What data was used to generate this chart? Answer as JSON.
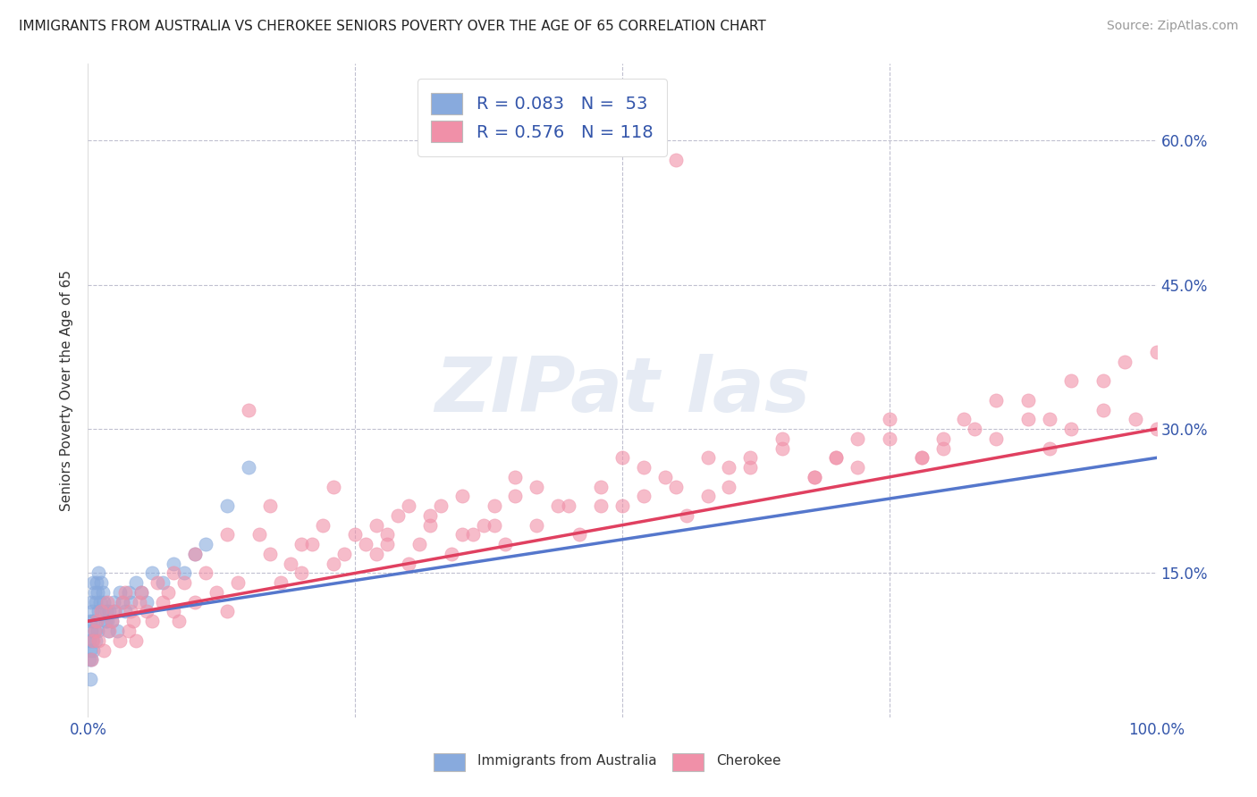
{
  "title": "IMMIGRANTS FROM AUSTRALIA VS CHEROKEE SENIORS POVERTY OVER THE AGE OF 65 CORRELATION CHART",
  "source": "Source: ZipAtlas.com",
  "ylabel": "Seniors Poverty Over the Age of 65",
  "xlim": [
    0.0,
    1.0
  ],
  "ylim": [
    0.0,
    0.68
  ],
  "color_australia": "#88aadd",
  "color_cherokee": "#f090a8",
  "trendline_australia": "#5577cc",
  "trendline_cherokee": "#e04060",
  "background_color": "#ffffff",
  "grid_color": "#c0c0d0",
  "label_australia": "Immigrants from Australia",
  "label_cherokee": "Cherokee",
  "legend_color": "#3355aa",
  "australia_x": [
    0.001,
    0.001,
    0.002,
    0.002,
    0.002,
    0.003,
    0.003,
    0.003,
    0.004,
    0.004,
    0.005,
    0.005,
    0.005,
    0.006,
    0.006,
    0.007,
    0.007,
    0.008,
    0.008,
    0.009,
    0.009,
    0.01,
    0.01,
    0.011,
    0.012,
    0.013,
    0.014,
    0.015,
    0.016,
    0.017,
    0.018,
    0.019,
    0.02,
    0.022,
    0.024,
    0.025,
    0.027,
    0.03,
    0.032,
    0.035,
    0.038,
    0.04,
    0.045,
    0.05,
    0.055,
    0.06,
    0.07,
    0.08,
    0.09,
    0.1,
    0.11,
    0.13,
    0.15
  ],
  "australia_y": [
    0.08,
    0.06,
    0.1,
    0.07,
    0.04,
    0.12,
    0.09,
    0.06,
    0.11,
    0.08,
    0.14,
    0.1,
    0.07,
    0.13,
    0.09,
    0.12,
    0.08,
    0.14,
    0.1,
    0.13,
    0.09,
    0.15,
    0.11,
    0.12,
    0.14,
    0.11,
    0.13,
    0.12,
    0.1,
    0.11,
    0.1,
    0.09,
    0.11,
    0.1,
    0.12,
    0.11,
    0.09,
    0.13,
    0.12,
    0.11,
    0.13,
    0.12,
    0.14,
    0.13,
    0.12,
    0.15,
    0.14,
    0.16,
    0.15,
    0.17,
    0.18,
    0.22,
    0.26
  ],
  "cherokee_x": [
    0.003,
    0.005,
    0.006,
    0.008,
    0.01,
    0.012,
    0.015,
    0.018,
    0.02,
    0.022,
    0.025,
    0.03,
    0.032,
    0.035,
    0.038,
    0.04,
    0.042,
    0.045,
    0.048,
    0.05,
    0.055,
    0.06,
    0.065,
    0.07,
    0.075,
    0.08,
    0.085,
    0.09,
    0.1,
    0.11,
    0.12,
    0.13,
    0.14,
    0.15,
    0.16,
    0.17,
    0.18,
    0.19,
    0.2,
    0.21,
    0.22,
    0.23,
    0.24,
    0.25,
    0.26,
    0.27,
    0.28,
    0.29,
    0.3,
    0.31,
    0.32,
    0.33,
    0.34,
    0.35,
    0.36,
    0.37,
    0.38,
    0.39,
    0.4,
    0.42,
    0.44,
    0.46,
    0.48,
    0.5,
    0.52,
    0.54,
    0.56,
    0.58,
    0.6,
    0.62,
    0.65,
    0.68,
    0.7,
    0.72,
    0.75,
    0.78,
    0.8,
    0.83,
    0.85,
    0.88,
    0.9,
    0.92,
    0.95,
    0.98,
    1.0,
    0.08,
    0.1,
    0.13,
    0.17,
    0.2,
    0.23,
    0.27,
    0.3,
    0.35,
    0.4,
    0.45,
    0.5,
    0.55,
    0.6,
    0.65,
    0.7,
    0.75,
    0.8,
    0.85,
    0.9,
    0.95,
    0.28,
    0.32,
    0.38,
    0.42,
    0.48,
    0.52,
    0.58,
    0.62,
    0.68,
    0.72,
    0.78,
    0.82,
    0.88,
    0.92,
    0.97,
    1.0,
    0.55
  ],
  "cherokee_y": [
    0.06,
    0.08,
    0.09,
    0.1,
    0.08,
    0.11,
    0.07,
    0.12,
    0.09,
    0.1,
    0.11,
    0.08,
    0.12,
    0.13,
    0.09,
    0.11,
    0.1,
    0.08,
    0.12,
    0.13,
    0.11,
    0.1,
    0.14,
    0.12,
    0.13,
    0.11,
    0.1,
    0.14,
    0.12,
    0.15,
    0.13,
    0.11,
    0.14,
    0.32,
    0.19,
    0.17,
    0.14,
    0.16,
    0.15,
    0.18,
    0.2,
    0.16,
    0.17,
    0.19,
    0.18,
    0.17,
    0.19,
    0.21,
    0.16,
    0.18,
    0.2,
    0.22,
    0.17,
    0.23,
    0.19,
    0.2,
    0.22,
    0.18,
    0.23,
    0.2,
    0.22,
    0.19,
    0.24,
    0.22,
    0.23,
    0.25,
    0.21,
    0.27,
    0.24,
    0.26,
    0.28,
    0.25,
    0.27,
    0.26,
    0.29,
    0.27,
    0.28,
    0.3,
    0.29,
    0.31,
    0.28,
    0.3,
    0.32,
    0.31,
    0.3,
    0.15,
    0.17,
    0.19,
    0.22,
    0.18,
    0.24,
    0.2,
    0.22,
    0.19,
    0.25,
    0.22,
    0.27,
    0.24,
    0.26,
    0.29,
    0.27,
    0.31,
    0.29,
    0.33,
    0.31,
    0.35,
    0.18,
    0.21,
    0.2,
    0.24,
    0.22,
    0.26,
    0.23,
    0.27,
    0.25,
    0.29,
    0.27,
    0.31,
    0.33,
    0.35,
    0.37,
    0.38,
    0.58
  ]
}
